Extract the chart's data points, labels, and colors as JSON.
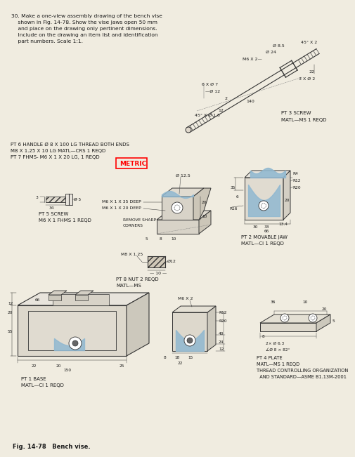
{
  "page_bg": "#f0ece0",
  "text_color": "#1a1a1a",
  "line_color": "#333333",
  "blue_fill": "#90b8d0",
  "hatch_color": "#555555",
  "problem_text": [
    "30. Make a one-view assembly drawing of the bench vise",
    "    shown in Fig. 14-78. Show the vise jaws open 50 mm",
    "    and place on the drawing only pertinent dimensions.",
    "    Include on the drawing an item list and identification",
    "    part numbers. Scale 1:1."
  ],
  "fig_caption": "Fig. 14-78   Bench vise.",
  "pt3_label": [
    "PT 3 SCREW",
    "MATL—MS 1 REQD"
  ],
  "pt5_label": [
    "PT 5 SCREW",
    "M6 X 1 FHMS 1 REQD"
  ],
  "pt6_label": [
    "PT 6 HANDLE Ø 8 X 100 LG THREAD BOTH ENDS",
    "M8 X 1.25 X 10 LG MATL—CRS 1 REQD",
    "PT 7 FHMS- M6 X 1 X 20 LG, 1 REQD"
  ],
  "pt8_label": [
    "PT 8 NUT 2 REQD",
    "MATL—MS"
  ],
  "pt1_label": [
    "PT 1 BASE",
    "MATL—CI 1 REQD"
  ],
  "pt2_label": [
    "PT 2 MOVABLE JAW",
    "MATL—CI 1 REQD"
  ],
  "pt4_label": [
    "PT 4 PLATE",
    "MATL—MS 1 REQD",
    "THREAD CONTROLLING ORGANIZATION",
    "  AND STANDARD—ASME B1.13M-2001"
  ],
  "metric_text": "METRIC"
}
